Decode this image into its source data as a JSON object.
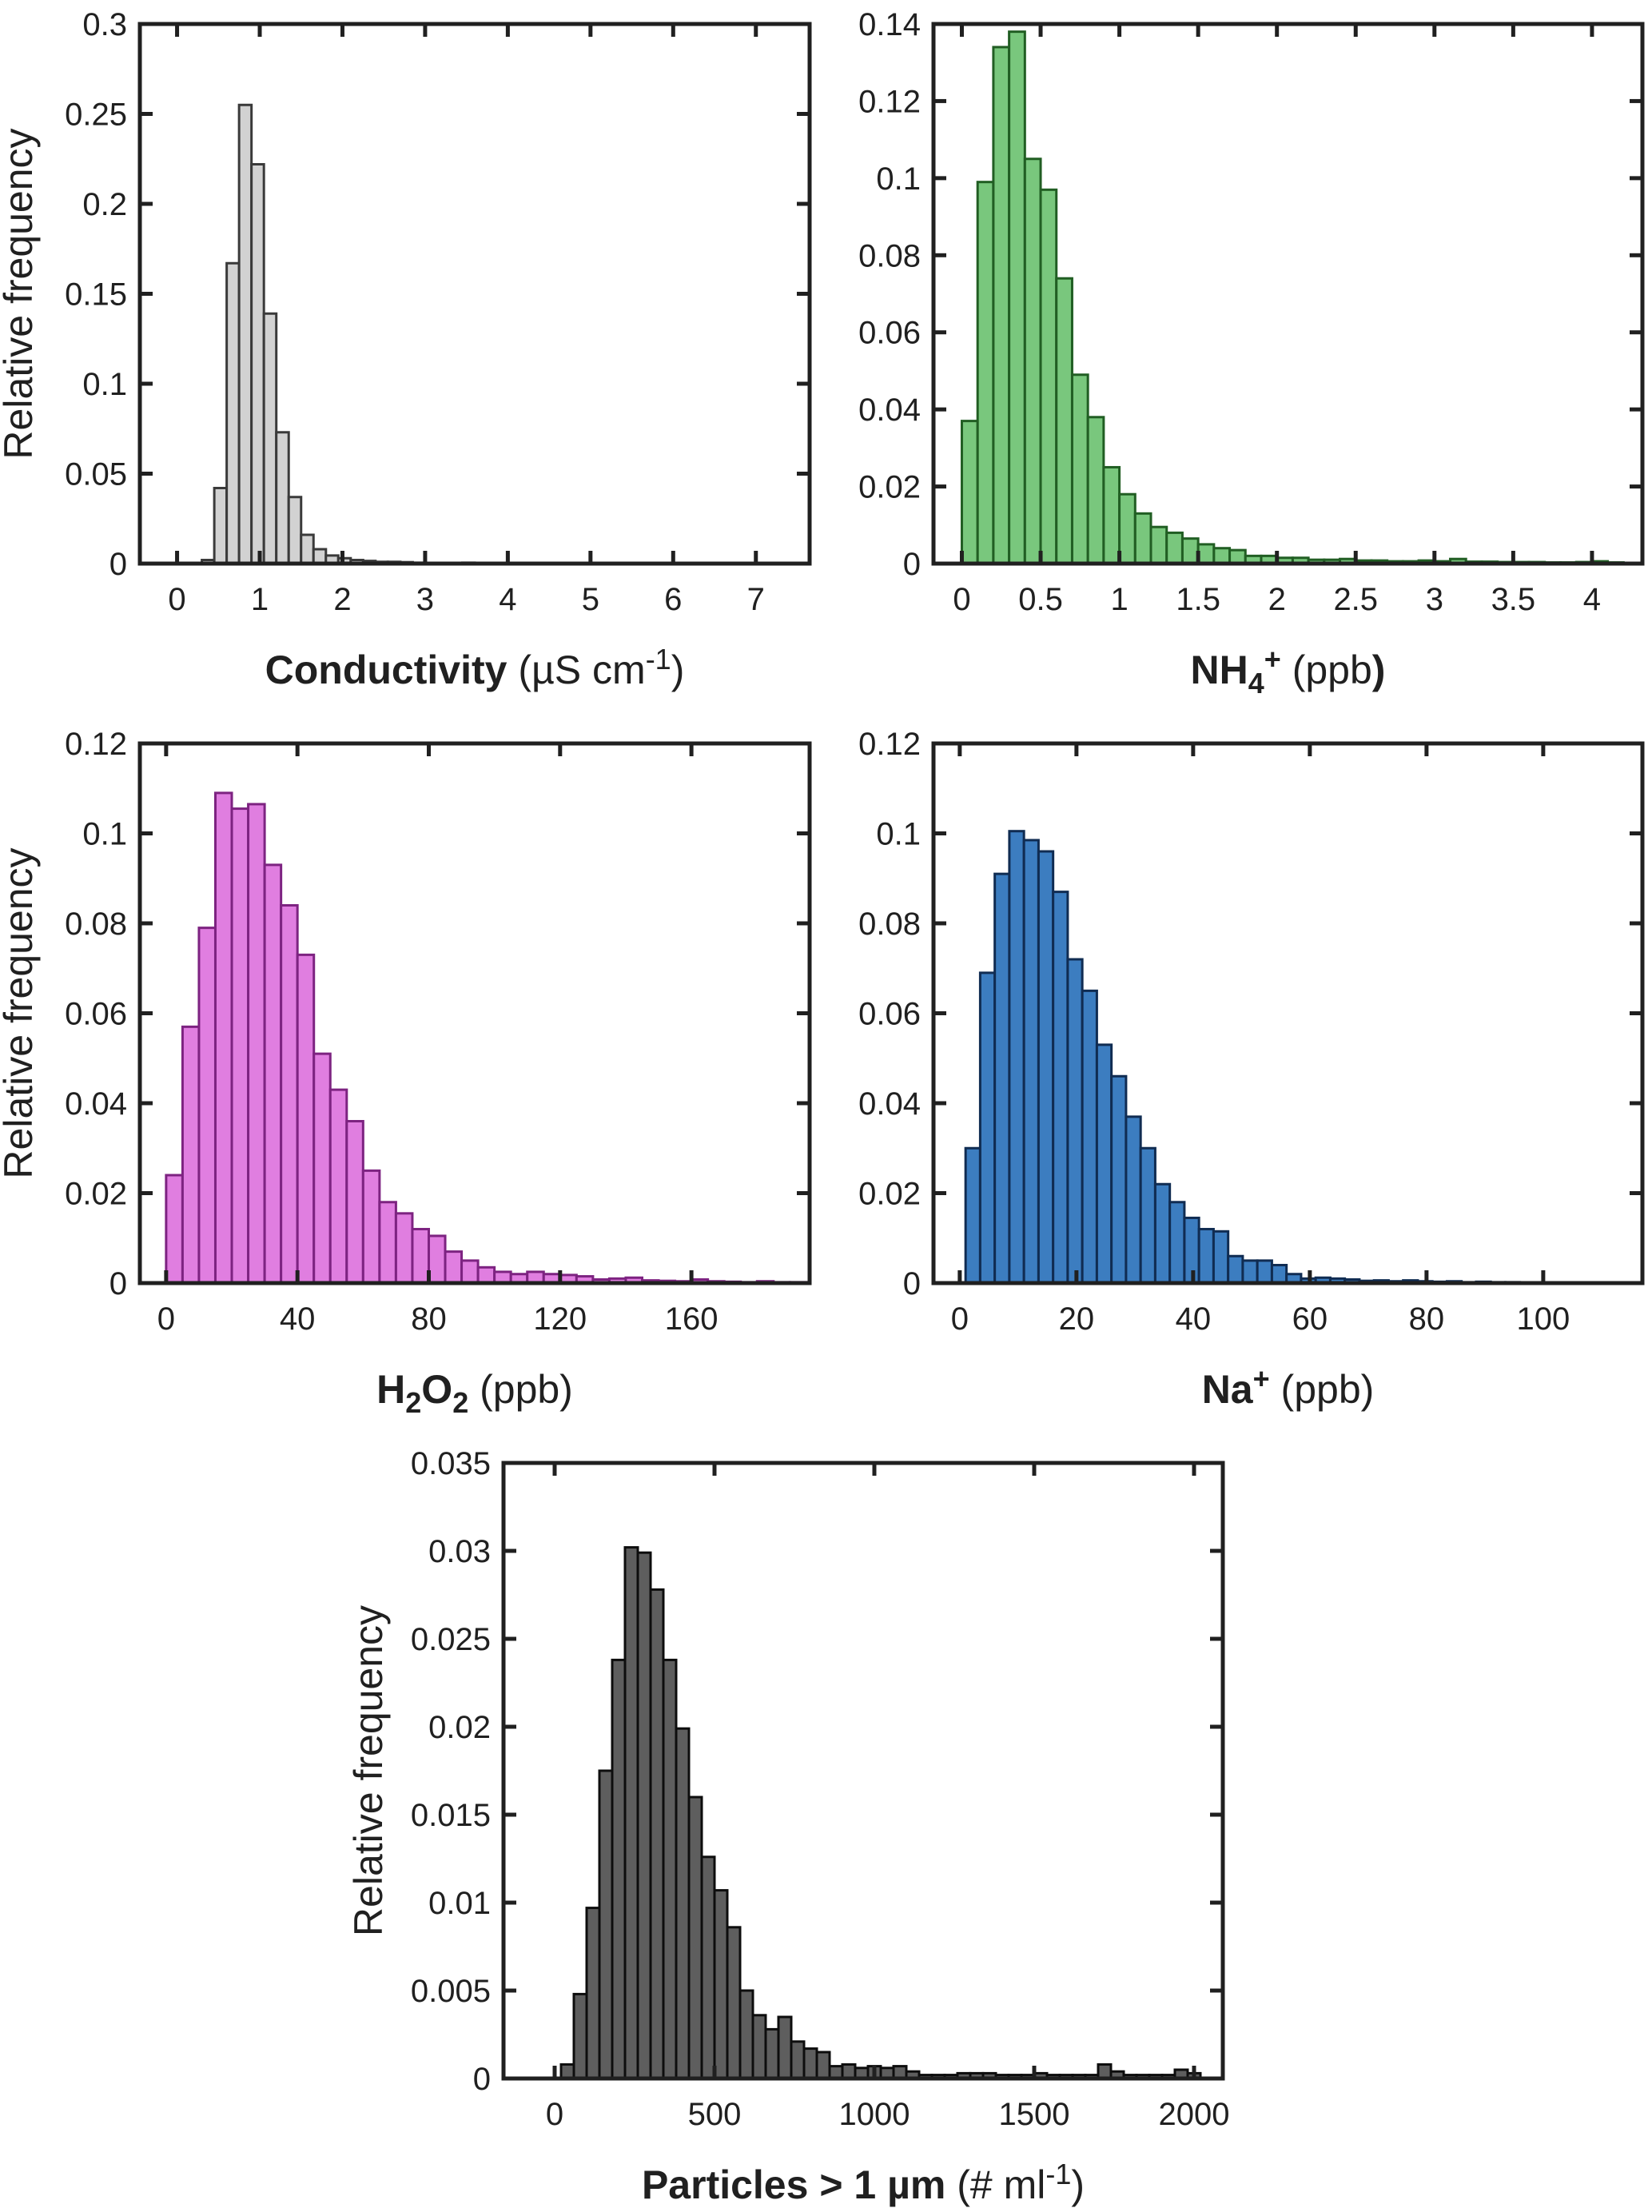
{
  "figure": {
    "background": "#ffffff",
    "axis_color": "#202020",
    "shared_ylabel": "Relative frequency"
  },
  "chart_data": [
    {
      "id": "conductivity",
      "type": "bar",
      "histogram": true,
      "xlabel_segments": [
        {
          "t": "Conductivity",
          "b": 1
        },
        {
          "t": " (µS cm",
          "b": 0
        },
        {
          "t": "-1",
          "b": 0,
          "sup": 1
        },
        {
          "t": ")",
          "b": 0
        }
      ],
      "ylabel": "Relative frequency",
      "show_ylabel": true,
      "bin_start": 0.3,
      "bin_width": 0.15,
      "values": [
        0.002,
        0.042,
        0.167,
        0.255,
        0.222,
        0.139,
        0.073,
        0.037,
        0.016,
        0.008,
        0.0045,
        0.003,
        0.002,
        0.0015,
        0.001,
        0.001,
        0.0008,
        0.0005,
        0.0004,
        0.0003,
        0.0003,
        0.0005,
        0.0002,
        0.0002
      ],
      "xlim": [
        -0.45,
        7.65
      ],
      "ylim": [
        0,
        0.3
      ],
      "xticks": [
        0,
        1,
        2,
        3,
        4,
        5,
        6,
        7
      ],
      "xtick_labels": [
        "0",
        "1",
        "2",
        "3",
        "4",
        "5",
        "6",
        "7"
      ],
      "yticks": [
        0,
        0.05,
        0.1,
        0.15,
        0.2,
        0.25,
        0.3
      ],
      "ytick_labels": [
        "0",
        "0.05",
        "0.1",
        "0.15",
        "0.2",
        "0.25",
        "0.3"
      ],
      "bar_fill": "#d2d2d2",
      "bar_edge": "#3a3a3a",
      "grid": false,
      "legend": null
    },
    {
      "id": "nh4",
      "type": "bar",
      "histogram": true,
      "xlabel_segments": [
        {
          "t": "NH",
          "b": 1
        },
        {
          "t": "4",
          "b": 1,
          "sub": 1
        },
        {
          "t": "+",
          "b": 1,
          "sup": 1
        },
        {
          "t": " (ppb",
          "b": 0
        },
        {
          "t": ")",
          "b": 1
        }
      ],
      "ylabel": "",
      "show_ylabel": false,
      "bin_start": 0,
      "bin_width": 0.1,
      "values": [
        0.037,
        0.099,
        0.134,
        0.138,
        0.105,
        0.097,
        0.074,
        0.049,
        0.038,
        0.025,
        0.018,
        0.013,
        0.0095,
        0.008,
        0.0065,
        0.005,
        0.004,
        0.0035,
        0.002,
        0.002,
        0.0015,
        0.0015,
        0.001,
        0.001,
        0.0012,
        0.0008,
        0.0008,
        0.0006,
        0.0006,
        0.0008,
        0.0006,
        0.0012,
        0.0005,
        0.0005,
        0.0004,
        0.0004,
        0.0004,
        0.0003,
        0.0003,
        0.0004,
        0.0006,
        0.0003
      ],
      "xlim": [
        -0.18,
        4.32
      ],
      "ylim": [
        0,
        0.14
      ],
      "xticks": [
        0,
        0.5,
        1,
        1.5,
        2,
        2.5,
        3,
        3.5,
        4
      ],
      "xtick_labels": [
        "0",
        "0.5",
        "1",
        "1.5",
        "2",
        "2.5",
        "3",
        "3.5",
        "4"
      ],
      "yticks": [
        0,
        0.02,
        0.04,
        0.06,
        0.08,
        0.1,
        0.12,
        0.14
      ],
      "ytick_labels": [
        "0",
        "0.02",
        "0.04",
        "0.06",
        "0.08",
        "0.1",
        "0.12",
        "0.14"
      ],
      "bar_fill": "#79c77d",
      "bar_edge": "#215e23",
      "grid": false,
      "legend": null
    },
    {
      "id": "h2o2",
      "type": "bar",
      "histogram": true,
      "xlabel_segments": [
        {
          "t": "H",
          "b": 1
        },
        {
          "t": "2",
          "b": 1,
          "sub": 1
        },
        {
          "t": "O",
          "b": 1
        },
        {
          "t": "2",
          "b": 1,
          "sub": 1
        },
        {
          "t": " (ppb)",
          "b": 0
        }
      ],
      "ylabel": "Relative frequency",
      "show_ylabel": true,
      "bin_start": 0,
      "bin_width": 5,
      "values": [
        0.024,
        0.057,
        0.079,
        0.109,
        0.1055,
        0.1065,
        0.093,
        0.084,
        0.073,
        0.051,
        0.043,
        0.036,
        0.025,
        0.018,
        0.0155,
        0.012,
        0.0105,
        0.007,
        0.005,
        0.0035,
        0.0025,
        0.002,
        0.0025,
        0.002,
        0.0018,
        0.0015,
        0.0008,
        0.001,
        0.0012,
        0.0006,
        0.0005,
        0.0004,
        0.0008,
        0.0004,
        0.0003,
        0.0002,
        0.0004,
        0.0002,
        0.0002
      ],
      "xlim": [
        -8,
        196
      ],
      "ylim": [
        0,
        0.12
      ],
      "xticks": [
        0,
        40,
        80,
        120,
        160
      ],
      "xtick_labels": [
        "0",
        "40",
        "80",
        "120",
        "160"
      ],
      "yticks": [
        0,
        0.02,
        0.04,
        0.06,
        0.08,
        0.1,
        0.12
      ],
      "ytick_labels": [
        "0",
        "0.02",
        "0.04",
        "0.06",
        "0.08",
        "0.1",
        "0.12"
      ],
      "bar_fill": "#e07ee0",
      "bar_edge": "#7d2381",
      "grid": false,
      "legend": null
    },
    {
      "id": "na",
      "type": "bar",
      "histogram": true,
      "xlabel_segments": [
        {
          "t": "Na",
          "b": 1
        },
        {
          "t": "+",
          "b": 1,
          "sup": 1
        },
        {
          "t": " (ppb)",
          "b": 0
        }
      ],
      "ylabel": "",
      "show_ylabel": false,
      "bin_start": 1,
      "bin_width": 2.5,
      "values": [
        0.03,
        0.069,
        0.091,
        0.1005,
        0.0985,
        0.096,
        0.087,
        0.072,
        0.065,
        0.053,
        0.046,
        0.037,
        0.03,
        0.022,
        0.018,
        0.0145,
        0.012,
        0.0115,
        0.006,
        0.005,
        0.005,
        0.004,
        0.002,
        0.001,
        0.0012,
        0.001,
        0.0008,
        0.0005,
        0.0006,
        0.0004,
        0.0006,
        0.0004,
        0.0003,
        0.0004,
        0.0002,
        0.0003,
        0.0002,
        0.0002
      ],
      "xlim": [
        -4.5,
        117
      ],
      "ylim": [
        0,
        0.12
      ],
      "xticks": [
        0,
        20,
        40,
        60,
        80,
        100
      ],
      "xtick_labels": [
        "0",
        "20",
        "40",
        "60",
        "80",
        "100"
      ],
      "yticks": [
        0,
        0.02,
        0.04,
        0.06,
        0.08,
        0.1,
        0.12
      ],
      "ytick_labels": [
        "0",
        "0.02",
        "0.04",
        "0.06",
        "0.08",
        "0.1",
        "0.12"
      ],
      "bar_fill": "#3c7dc0",
      "bar_edge": "#102c52",
      "grid": false,
      "legend": null
    },
    {
      "id": "particles",
      "type": "bar",
      "histogram": true,
      "xlabel_segments": [
        {
          "t": "Particles > 1 µm",
          "b": 1
        },
        {
          "t": " (# ml",
          "b": 0
        },
        {
          "t": "-1",
          "b": 0,
          "sup": 1
        },
        {
          "t": ")",
          "b": 0
        }
      ],
      "ylabel": "Relative frequency",
      "show_ylabel": true,
      "bin_start": 20,
      "bin_width": 40,
      "values": [
        0.0008,
        0.0048,
        0.0097,
        0.0175,
        0.0238,
        0.0302,
        0.0299,
        0.0278,
        0.0238,
        0.0199,
        0.016,
        0.0126,
        0.0107,
        0.0086,
        0.005,
        0.0036,
        0.0028,
        0.0035,
        0.0021,
        0.0017,
        0.0015,
        0.0007,
        0.0008,
        0.0006,
        0.0007,
        0.0006,
        0.0007,
        0.0004,
        0.0002,
        0.0002,
        0.0002,
        0.0003,
        0.0003,
        0.0003,
        0.0002,
        0.0002,
        0.0002,
        0.0003,
        0.0002,
        0.0002,
        0.0002,
        0.0002,
        0.0008,
        0.0004,
        0.0002,
        0.0002,
        0.0002,
        0.0002,
        0.0005,
        0.0003
      ],
      "xlim": [
        -160,
        2090
      ],
      "ylim": [
        0,
        0.035
      ],
      "xticks": [
        0,
        500,
        1000,
        1500,
        2000
      ],
      "xtick_labels": [
        "0",
        "500",
        "1000",
        "1500",
        "2000"
      ],
      "yticks": [
        0,
        0.005,
        0.01,
        0.015,
        0.02,
        0.025,
        0.03,
        0.035
      ],
      "ytick_labels": [
        "0",
        "0.005",
        "0.01",
        "0.015",
        "0.02",
        "0.025",
        "0.03",
        "0.035"
      ],
      "bar_fill": "#5e5e5e",
      "bar_edge": "#0d0d0d",
      "grid": false,
      "legend": null
    }
  ]
}
